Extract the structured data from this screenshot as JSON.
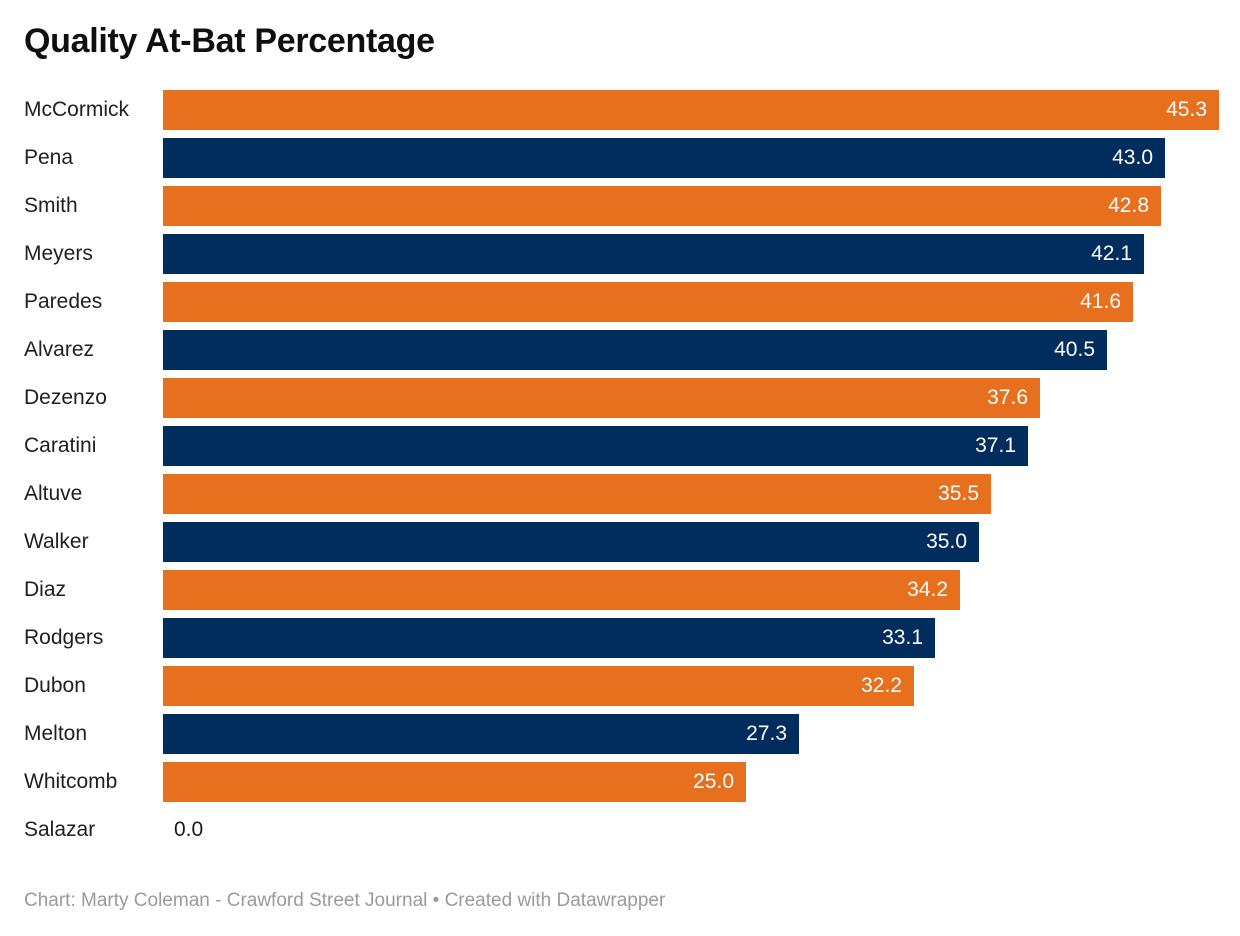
{
  "chart_data": {
    "type": "bar",
    "orientation": "horizontal",
    "title": "Quality At-Bat Percentage",
    "xlabel": "",
    "ylabel": "",
    "xlim": [
      0,
      45.3
    ],
    "grid": false,
    "legend": false,
    "value_label_position": "inside-end",
    "categories": [
      "McCormick",
      "Pena",
      "Smith",
      "Meyers",
      "Paredes",
      "Alvarez",
      "Dezenzo",
      "Caratini",
      "Altuve",
      "Walker",
      "Diaz",
      "Rodgers",
      "Dubon",
      "Melton",
      "Whitcomb",
      "Salazar"
    ],
    "values": [
      45.3,
      43.0,
      42.8,
      42.1,
      41.6,
      40.5,
      37.6,
      37.1,
      35.5,
      35.0,
      34.2,
      33.1,
      32.2,
      27.3,
      25.0,
      0.0
    ],
    "value_labels": [
      "45.3",
      "43.0",
      "42.8",
      "42.1",
      "41.6",
      "40.5",
      "37.6",
      "37.1",
      "35.5",
      "35.0",
      "34.2",
      "33.1",
      "32.2",
      "27.3",
      "25.0",
      "0.0"
    ],
    "bar_colors_alternating": [
      "#E7701F",
      "#002D5E"
    ]
  },
  "footer": {
    "text": "Chart: Marty Coleman - Crawford Street Journal • Created with Datawrapper"
  },
  "colors": {
    "orange": "#E7701F",
    "navy": "#002D5E",
    "title_text": "#0f0f0f",
    "category_text": "#1f1f1f",
    "value_inside_text": "#ffffff",
    "value_outside_text": "#1a1a1a",
    "footer_text": "#9a9a9a",
    "background": "#ffffff"
  }
}
